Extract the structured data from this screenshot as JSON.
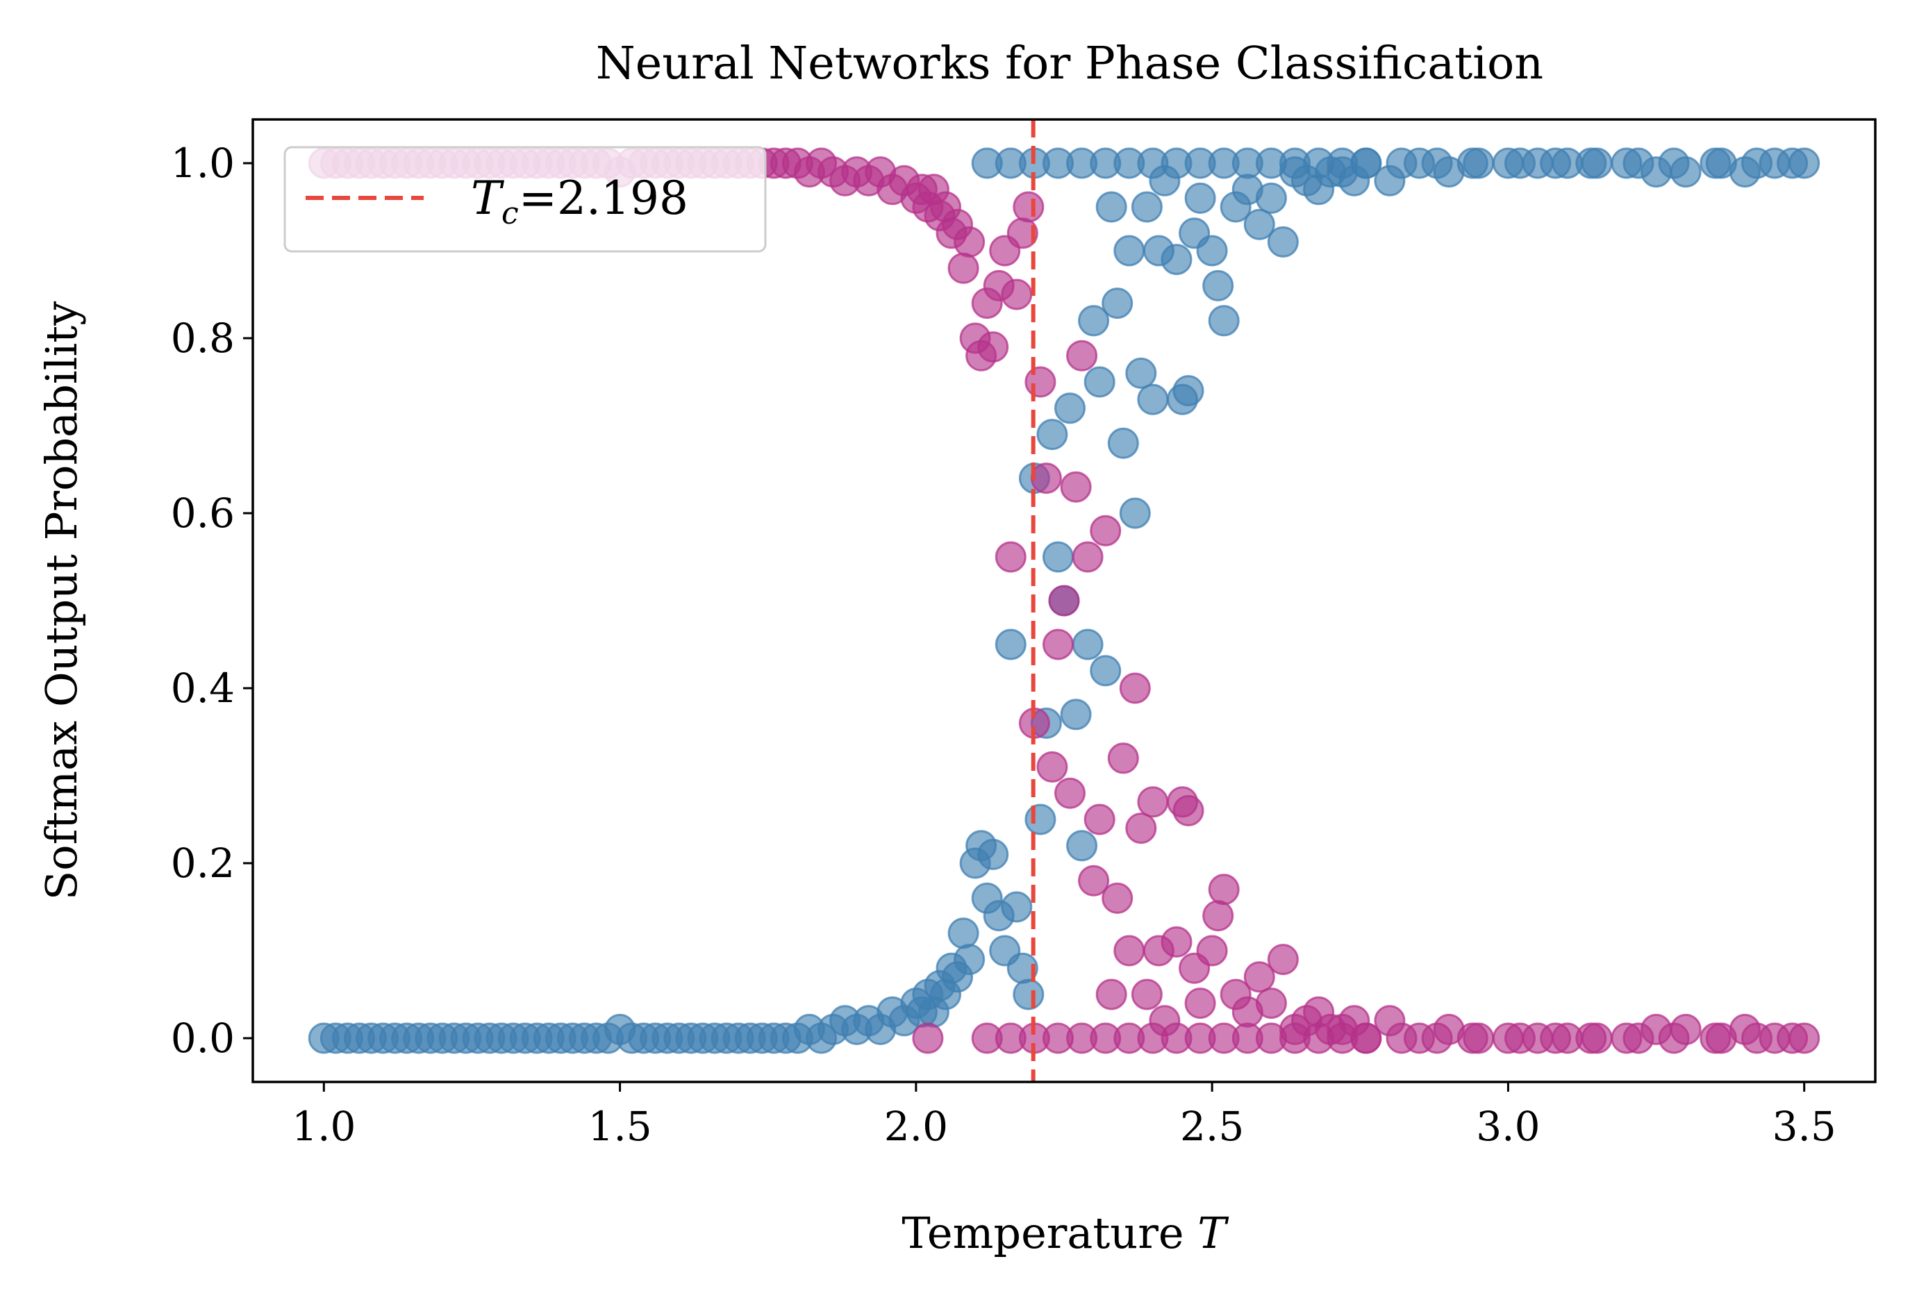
{
  "chart_data": {
    "type": "scatter",
    "title": "Neural Networks for Phase Classification",
    "xlabel_text": "Temperature ",
    "xlabel_var": "T",
    "ylabel": "Softmax Output Probability",
    "xlim": [
      0.88,
      3.62
    ],
    "ylim": [
      -0.05,
      1.05
    ],
    "x_ticks": [
      1.0,
      1.5,
      2.0,
      2.5,
      3.0,
      3.5
    ],
    "x_tick_labels": [
      "1.0",
      "1.5",
      "2.0",
      "2.5",
      "3.0",
      "3.5"
    ],
    "y_ticks": [
      0.0,
      0.2,
      0.4,
      0.6,
      0.8,
      1.0
    ],
    "y_tick_labels": [
      "0.0",
      "0.2",
      "0.4",
      "0.6",
      "0.8",
      "1.0"
    ],
    "grid": false,
    "legend_placement": "upper-left",
    "critical_line": {
      "x": 2.198,
      "legend_var": "T",
      "legend_sub": "c",
      "legend_value": "=2.198",
      "color": "#e8473b"
    },
    "series": [
      {
        "color": "#3f7fb2",
        "points": [
          [
            1.0,
            0.0
          ],
          [
            1.02,
            0.0
          ],
          [
            1.04,
            0.0
          ],
          [
            1.06,
            0.0
          ],
          [
            1.08,
            0.0
          ],
          [
            1.1,
            0.0
          ],
          [
            1.12,
            0.0
          ],
          [
            1.14,
            0.0
          ],
          [
            1.16,
            0.0
          ],
          [
            1.18,
            0.0
          ],
          [
            1.2,
            0.0
          ],
          [
            1.22,
            0.0
          ],
          [
            1.24,
            0.0
          ],
          [
            1.26,
            0.0
          ],
          [
            1.28,
            0.0
          ],
          [
            1.3,
            0.0
          ],
          [
            1.32,
            0.0
          ],
          [
            1.34,
            0.0
          ],
          [
            1.36,
            0.0
          ],
          [
            1.38,
            0.0
          ],
          [
            1.4,
            0.0
          ],
          [
            1.42,
            0.0
          ],
          [
            1.44,
            0.0
          ],
          [
            1.46,
            0.0
          ],
          [
            1.48,
            0.0
          ],
          [
            1.5,
            0.01
          ],
          [
            1.52,
            0.0
          ],
          [
            1.54,
            0.0
          ],
          [
            1.56,
            0.0
          ],
          [
            1.58,
            0.0
          ],
          [
            1.6,
            0.0
          ],
          [
            1.62,
            0.0
          ],
          [
            1.64,
            0.0
          ],
          [
            1.66,
            0.0
          ],
          [
            1.68,
            0.0
          ],
          [
            1.7,
            0.0
          ],
          [
            1.72,
            0.0
          ],
          [
            1.74,
            0.0
          ],
          [
            1.76,
            0.0
          ],
          [
            1.78,
            0.0
          ],
          [
            1.8,
            0.0
          ],
          [
            1.82,
            0.01
          ],
          [
            1.84,
            0.0
          ],
          [
            1.86,
            0.01
          ],
          [
            1.88,
            0.02
          ],
          [
            1.9,
            0.01
          ],
          [
            1.92,
            0.02
          ],
          [
            1.94,
            0.01
          ],
          [
            1.96,
            0.03
          ],
          [
            1.98,
            0.02
          ],
          [
            2.0,
            0.04
          ],
          [
            2.01,
            0.03
          ],
          [
            2.02,
            0.05
          ],
          [
            2.03,
            0.03
          ],
          [
            2.04,
            0.06
          ],
          [
            2.05,
            0.05
          ],
          [
            2.06,
            0.08
          ],
          [
            2.07,
            0.07
          ],
          [
            2.08,
            0.12
          ],
          [
            2.09,
            0.09
          ],
          [
            2.1,
            0.2
          ],
          [
            2.11,
            0.22
          ],
          [
            2.12,
            0.16
          ],
          [
            2.13,
            0.21
          ],
          [
            2.14,
            0.14
          ],
          [
            2.15,
            0.1
          ],
          [
            2.16,
            0.45
          ],
          [
            2.17,
            0.15
          ],
          [
            2.18,
            0.08
          ],
          [
            2.19,
            0.05
          ],
          [
            2.2,
            0.64
          ],
          [
            2.21,
            0.25
          ],
          [
            2.22,
            0.36
          ],
          [
            2.23,
            0.69
          ],
          [
            2.24,
            0.55
          ],
          [
            2.25,
            0.5
          ],
          [
            2.26,
            0.72
          ],
          [
            2.27,
            0.37
          ],
          [
            2.28,
            0.22
          ],
          [
            2.29,
            0.45
          ],
          [
            2.3,
            0.82
          ],
          [
            2.31,
            0.75
          ],
          [
            2.32,
            0.42
          ],
          [
            2.33,
            0.95
          ],
          [
            2.34,
            0.84
          ],
          [
            2.35,
            0.68
          ],
          [
            2.36,
            0.9
          ],
          [
            2.37,
            0.6
          ],
          [
            2.38,
            0.76
          ],
          [
            2.39,
            0.95
          ],
          [
            2.4,
            0.73
          ],
          [
            2.41,
            0.9
          ],
          [
            2.42,
            0.98
          ],
          [
            2.44,
            0.89
          ],
          [
            2.45,
            0.73
          ],
          [
            2.46,
            0.74
          ],
          [
            2.47,
            0.92
          ],
          [
            2.48,
            0.96
          ],
          [
            2.5,
            0.9
          ],
          [
            2.51,
            0.86
          ],
          [
            2.52,
            0.82
          ],
          [
            2.54,
            0.95
          ],
          [
            2.56,
            0.97
          ],
          [
            2.58,
            0.93
          ],
          [
            2.6,
            0.96
          ],
          [
            2.62,
            0.91
          ],
          [
            2.64,
            0.99
          ],
          [
            2.66,
            0.98
          ],
          [
            2.68,
            0.97
          ],
          [
            2.7,
            0.99
          ],
          [
            2.72,
            0.99
          ],
          [
            2.74,
            0.98
          ],
          [
            2.76,
            1.0
          ],
          [
            2.8,
            0.98
          ],
          [
            2.85,
            1.0
          ],
          [
            2.9,
            0.99
          ],
          [
            2.95,
            1.0
          ],
          [
            3.0,
            1.0
          ],
          [
            3.05,
            1.0
          ],
          [
            3.1,
            1.0
          ],
          [
            3.15,
            1.0
          ],
          [
            3.2,
            1.0
          ],
          [
            3.25,
            0.99
          ],
          [
            3.3,
            0.99
          ],
          [
            3.35,
            1.0
          ],
          [
            3.4,
            0.99
          ],
          [
            3.45,
            1.0
          ],
          [
            3.5,
            1.0
          ],
          [
            2.12,
            1.0
          ],
          [
            2.16,
            1.0
          ],
          [
            2.2,
            1.0
          ],
          [
            2.24,
            1.0
          ],
          [
            2.28,
            1.0
          ],
          [
            2.32,
            1.0
          ],
          [
            2.36,
            1.0
          ],
          [
            2.4,
            1.0
          ],
          [
            2.44,
            1.0
          ],
          [
            2.48,
            1.0
          ],
          [
            2.52,
            1.0
          ],
          [
            2.56,
            1.0
          ],
          [
            2.6,
            1.0
          ],
          [
            2.64,
            1.0
          ],
          [
            2.68,
            1.0
          ],
          [
            2.72,
            1.0
          ],
          [
            2.76,
            1.0
          ],
          [
            2.82,
            1.0
          ],
          [
            2.88,
            1.0
          ],
          [
            2.94,
            1.0
          ],
          [
            3.02,
            1.0
          ],
          [
            3.08,
            1.0
          ],
          [
            3.14,
            1.0
          ],
          [
            3.22,
            1.0
          ],
          [
            3.28,
            1.0
          ],
          [
            3.36,
            1.0
          ],
          [
            3.42,
            1.0
          ],
          [
            3.48,
            1.0
          ]
        ]
      },
      {
        "color": "#b5328a",
        "points": [
          [
            1.0,
            1.0
          ],
          [
            1.02,
            1.0
          ],
          [
            1.04,
            1.0
          ],
          [
            1.06,
            1.0
          ],
          [
            1.08,
            1.0
          ],
          [
            1.1,
            1.0
          ],
          [
            1.12,
            1.0
          ],
          [
            1.14,
            1.0
          ],
          [
            1.16,
            1.0
          ],
          [
            1.18,
            1.0
          ],
          [
            1.2,
            1.0
          ],
          [
            1.22,
            1.0
          ],
          [
            1.24,
            1.0
          ],
          [
            1.26,
            1.0
          ],
          [
            1.28,
            1.0
          ],
          [
            1.3,
            1.0
          ],
          [
            1.32,
            1.0
          ],
          [
            1.34,
            1.0
          ],
          [
            1.36,
            1.0
          ],
          [
            1.38,
            1.0
          ],
          [
            1.4,
            1.0
          ],
          [
            1.42,
            1.0
          ],
          [
            1.44,
            1.0
          ],
          [
            1.46,
            1.0
          ],
          [
            1.48,
            1.0
          ],
          [
            1.5,
            0.99
          ],
          [
            1.52,
            1.0
          ],
          [
            1.54,
            1.0
          ],
          [
            1.56,
            1.0
          ],
          [
            1.58,
            1.0
          ],
          [
            1.6,
            1.0
          ],
          [
            1.62,
            1.0
          ],
          [
            1.64,
            1.0
          ],
          [
            1.66,
            1.0
          ],
          [
            1.68,
            1.0
          ],
          [
            1.7,
            1.0
          ],
          [
            1.72,
            1.0
          ],
          [
            1.74,
            1.0
          ],
          [
            1.76,
            1.0
          ],
          [
            1.78,
            1.0
          ],
          [
            1.8,
            1.0
          ],
          [
            1.82,
            0.99
          ],
          [
            1.84,
            1.0
          ],
          [
            1.86,
            0.99
          ],
          [
            1.88,
            0.98
          ],
          [
            1.9,
            0.99
          ],
          [
            1.92,
            0.98
          ],
          [
            1.94,
            0.99
          ],
          [
            1.96,
            0.97
          ],
          [
            1.98,
            0.98
          ],
          [
            2.0,
            0.96
          ],
          [
            2.01,
            0.97
          ],
          [
            2.02,
            0.95
          ],
          [
            2.03,
            0.97
          ],
          [
            2.04,
            0.94
          ],
          [
            2.05,
            0.95
          ],
          [
            2.06,
            0.92
          ],
          [
            2.07,
            0.93
          ],
          [
            2.08,
            0.88
          ],
          [
            2.09,
            0.91
          ],
          [
            2.1,
            0.8
          ],
          [
            2.11,
            0.78
          ],
          [
            2.12,
            0.84
          ],
          [
            2.13,
            0.79
          ],
          [
            2.14,
            0.86
          ],
          [
            2.15,
            0.9
          ],
          [
            2.16,
            0.55
          ],
          [
            2.17,
            0.85
          ],
          [
            2.18,
            0.92
          ],
          [
            2.19,
            0.95
          ],
          [
            2.2,
            0.36
          ],
          [
            2.21,
            0.75
          ],
          [
            2.22,
            0.64
          ],
          [
            2.23,
            0.31
          ],
          [
            2.24,
            0.45
          ],
          [
            2.25,
            0.5
          ],
          [
            2.26,
            0.28
          ],
          [
            2.27,
            0.63
          ],
          [
            2.28,
            0.78
          ],
          [
            2.29,
            0.55
          ],
          [
            2.3,
            0.18
          ],
          [
            2.31,
            0.25
          ],
          [
            2.32,
            0.58
          ],
          [
            2.33,
            0.05
          ],
          [
            2.34,
            0.16
          ],
          [
            2.35,
            0.32
          ],
          [
            2.36,
            0.1
          ],
          [
            2.37,
            0.4
          ],
          [
            2.38,
            0.24
          ],
          [
            2.39,
            0.05
          ],
          [
            2.4,
            0.27
          ],
          [
            2.41,
            0.1
          ],
          [
            2.42,
            0.02
          ],
          [
            2.44,
            0.11
          ],
          [
            2.45,
            0.27
          ],
          [
            2.46,
            0.26
          ],
          [
            2.47,
            0.08
          ],
          [
            2.48,
            0.04
          ],
          [
            2.5,
            0.1
          ],
          [
            2.51,
            0.14
          ],
          [
            2.52,
            0.17
          ],
          [
            2.54,
            0.05
          ],
          [
            2.56,
            0.03
          ],
          [
            2.58,
            0.07
          ],
          [
            2.6,
            0.04
          ],
          [
            2.62,
            0.09
          ],
          [
            2.64,
            0.01
          ],
          [
            2.66,
            0.02
          ],
          [
            2.68,
            0.03
          ],
          [
            2.7,
            0.01
          ],
          [
            2.72,
            0.01
          ],
          [
            2.74,
            0.02
          ],
          [
            2.76,
            0.0
          ],
          [
            2.8,
            0.02
          ],
          [
            2.85,
            0.0
          ],
          [
            2.9,
            0.01
          ],
          [
            2.95,
            0.0
          ],
          [
            3.0,
            0.0
          ],
          [
            3.05,
            0.0
          ],
          [
            3.1,
            0.0
          ],
          [
            3.15,
            0.0
          ],
          [
            3.2,
            0.0
          ],
          [
            3.25,
            0.01
          ],
          [
            3.3,
            0.01
          ],
          [
            3.35,
            0.0
          ],
          [
            3.4,
            0.01
          ],
          [
            3.45,
            0.0
          ],
          [
            3.5,
            0.0
          ],
          [
            2.02,
            0.0
          ],
          [
            2.12,
            0.0
          ],
          [
            2.16,
            0.0
          ],
          [
            2.2,
            0.0
          ],
          [
            2.24,
            0.0
          ],
          [
            2.28,
            0.0
          ],
          [
            2.32,
            0.0
          ],
          [
            2.36,
            0.0
          ],
          [
            2.4,
            0.0
          ],
          [
            2.44,
            0.0
          ],
          [
            2.48,
            0.0
          ],
          [
            2.52,
            0.0
          ],
          [
            2.56,
            0.0
          ],
          [
            2.6,
            0.0
          ],
          [
            2.64,
            0.0
          ],
          [
            2.68,
            0.0
          ],
          [
            2.72,
            0.0
          ],
          [
            2.76,
            0.0
          ],
          [
            2.82,
            0.0
          ],
          [
            2.88,
            0.0
          ],
          [
            2.94,
            0.0
          ],
          [
            3.02,
            0.0
          ],
          [
            3.08,
            0.0
          ],
          [
            3.14,
            0.0
          ],
          [
            3.22,
            0.0
          ],
          [
            3.28,
            0.0
          ],
          [
            3.36,
            0.0
          ],
          [
            3.42,
            0.0
          ],
          [
            3.48,
            0.0
          ]
        ]
      }
    ]
  }
}
